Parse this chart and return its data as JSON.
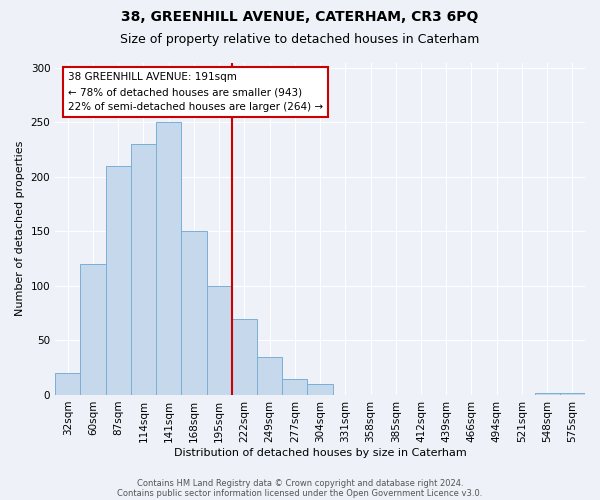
{
  "title": "38, GREENHILL AVENUE, CATERHAM, CR3 6PQ",
  "subtitle": "Size of property relative to detached houses in Caterham",
  "xlabel": "Distribution of detached houses by size in Caterham",
  "ylabel": "Number of detached properties",
  "bar_labels": [
    "32sqm",
    "60sqm",
    "87sqm",
    "114sqm",
    "141sqm",
    "168sqm",
    "195sqm",
    "222sqm",
    "249sqm",
    "277sqm",
    "304sqm",
    "331sqm",
    "358sqm",
    "385sqm",
    "412sqm",
    "439sqm",
    "466sqm",
    "494sqm",
    "521sqm",
    "548sqm",
    "575sqm"
  ],
  "bar_values": [
    20,
    120,
    210,
    230,
    250,
    150,
    100,
    70,
    35,
    15,
    10,
    0,
    0,
    0,
    0,
    0,
    0,
    0,
    0,
    2,
    2
  ],
  "bar_color": "#c5d8ec",
  "bar_edge_color": "#7aafd4",
  "vline_x": 6.5,
  "vline_color": "#cc0000",
  "annotation_title": "38 GREENHILL AVENUE: 191sqm",
  "annotation_line1": "← 78% of detached houses are smaller (943)",
  "annotation_line2": "22% of semi-detached houses are larger (264) →",
  "annotation_box_color": "#ffffff",
  "annotation_box_edge": "#cc0000",
  "ylim": [
    0,
    305
  ],
  "yticks": [
    0,
    50,
    100,
    150,
    200,
    250,
    300
  ],
  "footer1": "Contains HM Land Registry data © Crown copyright and database right 2024.",
  "footer2": "Contains public sector information licensed under the Open Government Licence v3.0.",
  "bg_color": "#eef2f8",
  "grid_color": "#ffffff",
  "title_fontsize": 10,
  "subtitle_fontsize": 9,
  "axis_label_fontsize": 8,
  "tick_fontsize": 7.5,
  "footer_fontsize": 6
}
